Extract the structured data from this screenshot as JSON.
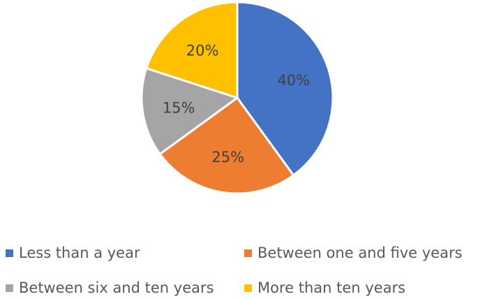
{
  "chart_data": {
    "type": "pie",
    "categories": [
      "Less than a year",
      "Between one and five years",
      "Between six and ten years",
      "More than ten years"
    ],
    "values": [
      40,
      25,
      15,
      20
    ],
    "labels": [
      "40%",
      "25%",
      "15%",
      "20%"
    ],
    "colors": [
      "#4472C4",
      "#ED7D31",
      "#A5A5A5",
      "#FFC000"
    ],
    "legend": "bottom"
  }
}
